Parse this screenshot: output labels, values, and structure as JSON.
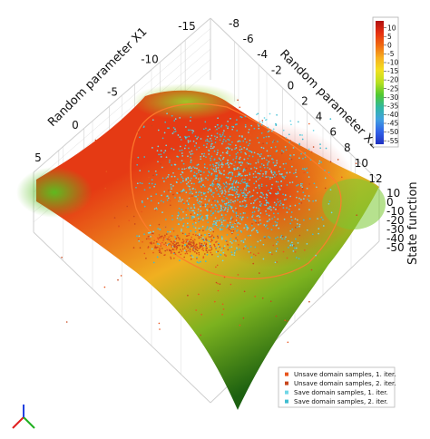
{
  "chart_data": {
    "type": "surface",
    "title": "",
    "x_axis": {
      "label": "Random parameter X1",
      "ticks": [
        "-15",
        "-10",
        "-5",
        "0",
        "5"
      ],
      "range": [
        -15,
        5
      ]
    },
    "y_axis": {
      "label": "Random parameter X2",
      "ticks": [
        "-8",
        "-6",
        "-4",
        "-2",
        "0",
        "2",
        "4",
        "6",
        "8",
        "10",
        "12"
      ],
      "range": [
        -8,
        12
      ]
    },
    "z_axis": {
      "label": "State function",
      "ticks": [
        "10",
        "0",
        "-10",
        "-20",
        "-30",
        "-40",
        "-50"
      ],
      "range": [
        -50,
        10
      ]
    },
    "colorbar": {
      "ticks": [
        "10",
        "5",
        "0",
        "-5",
        "-10",
        "-15",
        "-20",
        "-25",
        "-30",
        "-35",
        "-40",
        "-45",
        "-50",
        "-55"
      ],
      "range": [
        -57,
        14
      ],
      "colors": [
        "#b01010",
        "#e63010",
        "#f06a10",
        "#f7b020",
        "#f2e020",
        "#b8e020",
        "#50c830",
        "#30b8a0",
        "#40a0e0",
        "#3060e8",
        "#2030c0"
      ]
    },
    "surface_colors": {
      "high": "#e53a14",
      "mid": "#f0b020",
      "low": "#2f8e15",
      "lowest": "#1c6010"
    },
    "legend": {
      "placement": "bottom-right",
      "entries": [
        {
          "label": "Unsave domain samples, 1. iter.",
          "color": "#e8541c"
        },
        {
          "label": "Unsave domain samples,  2. iter.",
          "color": "#c8461c"
        },
        {
          "label": "Save domain samples, 1. iter.",
          "color": "#6fd6e6"
        },
        {
          "label": "Save domain samples,  2. iter.",
          "color": "#3fbcd0"
        }
      ]
    },
    "samples": {
      "save_domain_count": 1400,
      "unsave_domain_count": 500
    }
  }
}
